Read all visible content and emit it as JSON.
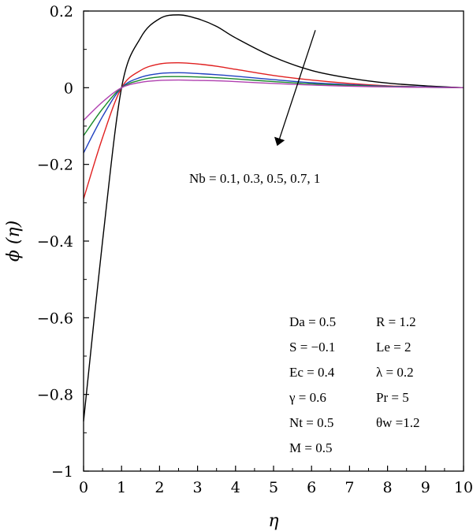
{
  "chart_data": {
    "type": "line",
    "xlabel": "η",
    "ylabel": "ϕ (η)",
    "xlim": [
      0,
      10
    ],
    "ylim": [
      -1,
      0.2
    ],
    "xticks": [
      "0",
      "1",
      "2",
      "3",
      "4",
      "5",
      "6",
      "7",
      "8",
      "9",
      "10"
    ],
    "yticks": [
      "−1",
      "−0.8",
      "−0.6",
      "−0.4",
      "−0.2",
      "0",
      "0.2"
    ],
    "arrow_label": "Nb = 0.1, 0.3, 0.5, 0.7, 1",
    "arrow_start": [
      6.1,
      0.15
    ],
    "arrow_end": [
      5.1,
      -0.15
    ],
    "params": [
      [
        "Da = 0.5",
        "R = 1.2"
      ],
      [
        "S = −0.1",
        "Le = 2"
      ],
      [
        "Ec = 0.4",
        "λ = 0.2"
      ],
      [
        "γ = 0.6",
        "Pr = 5"
      ],
      [
        "Nt = 0.5",
        "θw =1.2"
      ],
      [
        "M = 0.5",
        ""
      ]
    ],
    "series": [
      {
        "color": "#000000",
        "x": [
          0,
          0.5,
          1,
          1.5,
          2,
          2.5,
          3,
          3.5,
          4,
          5,
          6,
          7,
          8,
          9,
          10
        ],
        "y": [
          -0.87,
          -0.4,
          0.0,
          0.13,
          0.18,
          0.19,
          0.18,
          0.16,
          0.13,
          0.08,
          0.045,
          0.025,
          0.012,
          0.005,
          0.0
        ]
      },
      {
        "color": "#e02020",
        "x": [
          0,
          0.5,
          1,
          1.5,
          2,
          2.5,
          3,
          3.5,
          4,
          5,
          6,
          7,
          8,
          9,
          10
        ],
        "y": [
          -0.29,
          -0.13,
          0.0,
          0.045,
          0.062,
          0.065,
          0.062,
          0.056,
          0.048,
          0.032,
          0.02,
          0.011,
          0.005,
          0.002,
          0.0
        ]
      },
      {
        "color": "#2040c0",
        "x": [
          0,
          0.5,
          1,
          1.5,
          2,
          2.5,
          3,
          3.5,
          4,
          5,
          6,
          7,
          8,
          9,
          10
        ],
        "y": [
          -0.17,
          -0.075,
          0.0,
          0.027,
          0.037,
          0.039,
          0.037,
          0.034,
          0.03,
          0.021,
          0.013,
          0.008,
          0.004,
          0.002,
          0.0
        ]
      },
      {
        "color": "#1a8a2a",
        "x": [
          0,
          0.5,
          1,
          1.5,
          2,
          2.5,
          3,
          3.5,
          4,
          5,
          6,
          7,
          8,
          9,
          10
        ],
        "y": [
          -0.125,
          -0.055,
          0.0,
          0.02,
          0.028,
          0.029,
          0.028,
          0.026,
          0.023,
          0.016,
          0.01,
          0.006,
          0.003,
          0.001,
          0.0
        ]
      },
      {
        "color": "#b040b0",
        "x": [
          0,
          0.5,
          1,
          1.5,
          2,
          2.5,
          3,
          3.5,
          4,
          5,
          6,
          7,
          8,
          9,
          10
        ],
        "y": [
          -0.085,
          -0.037,
          0.0,
          0.014,
          0.019,
          0.02,
          0.019,
          0.018,
          0.016,
          0.011,
          0.007,
          0.004,
          0.002,
          0.001,
          0.0
        ]
      }
    ]
  }
}
